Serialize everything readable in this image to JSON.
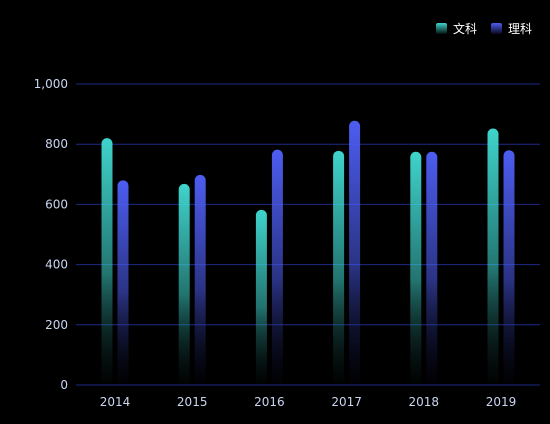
{
  "chart_data": {
    "type": "bar",
    "categories": [
      "2014",
      "2015",
      "2016",
      "2017",
      "2018",
      "2019"
    ],
    "series": [
      {
        "name": "文科",
        "values": [
          820,
          668,
          582,
          778,
          775,
          852
        ],
        "color": "#3fd4cc",
        "color_bottom": "#06110f"
      },
      {
        "name": "理科",
        "values": [
          680,
          698,
          782,
          878,
          775,
          780
        ],
        "color": "#4d5df0",
        "color_bottom": "#07081a"
      }
    ],
    "y_ticks": [
      "0",
      "200",
      "400",
      "600",
      "800",
      "1,000"
    ],
    "y_tick_values": [
      0,
      200,
      400,
      600,
      800,
      1000
    ],
    "ylim": [
      0,
      1000
    ],
    "grid": true,
    "legend_position": "top-right",
    "grid_color": "#1d2a86",
    "text_color": "#c9d6f0",
    "background": "#000000"
  }
}
